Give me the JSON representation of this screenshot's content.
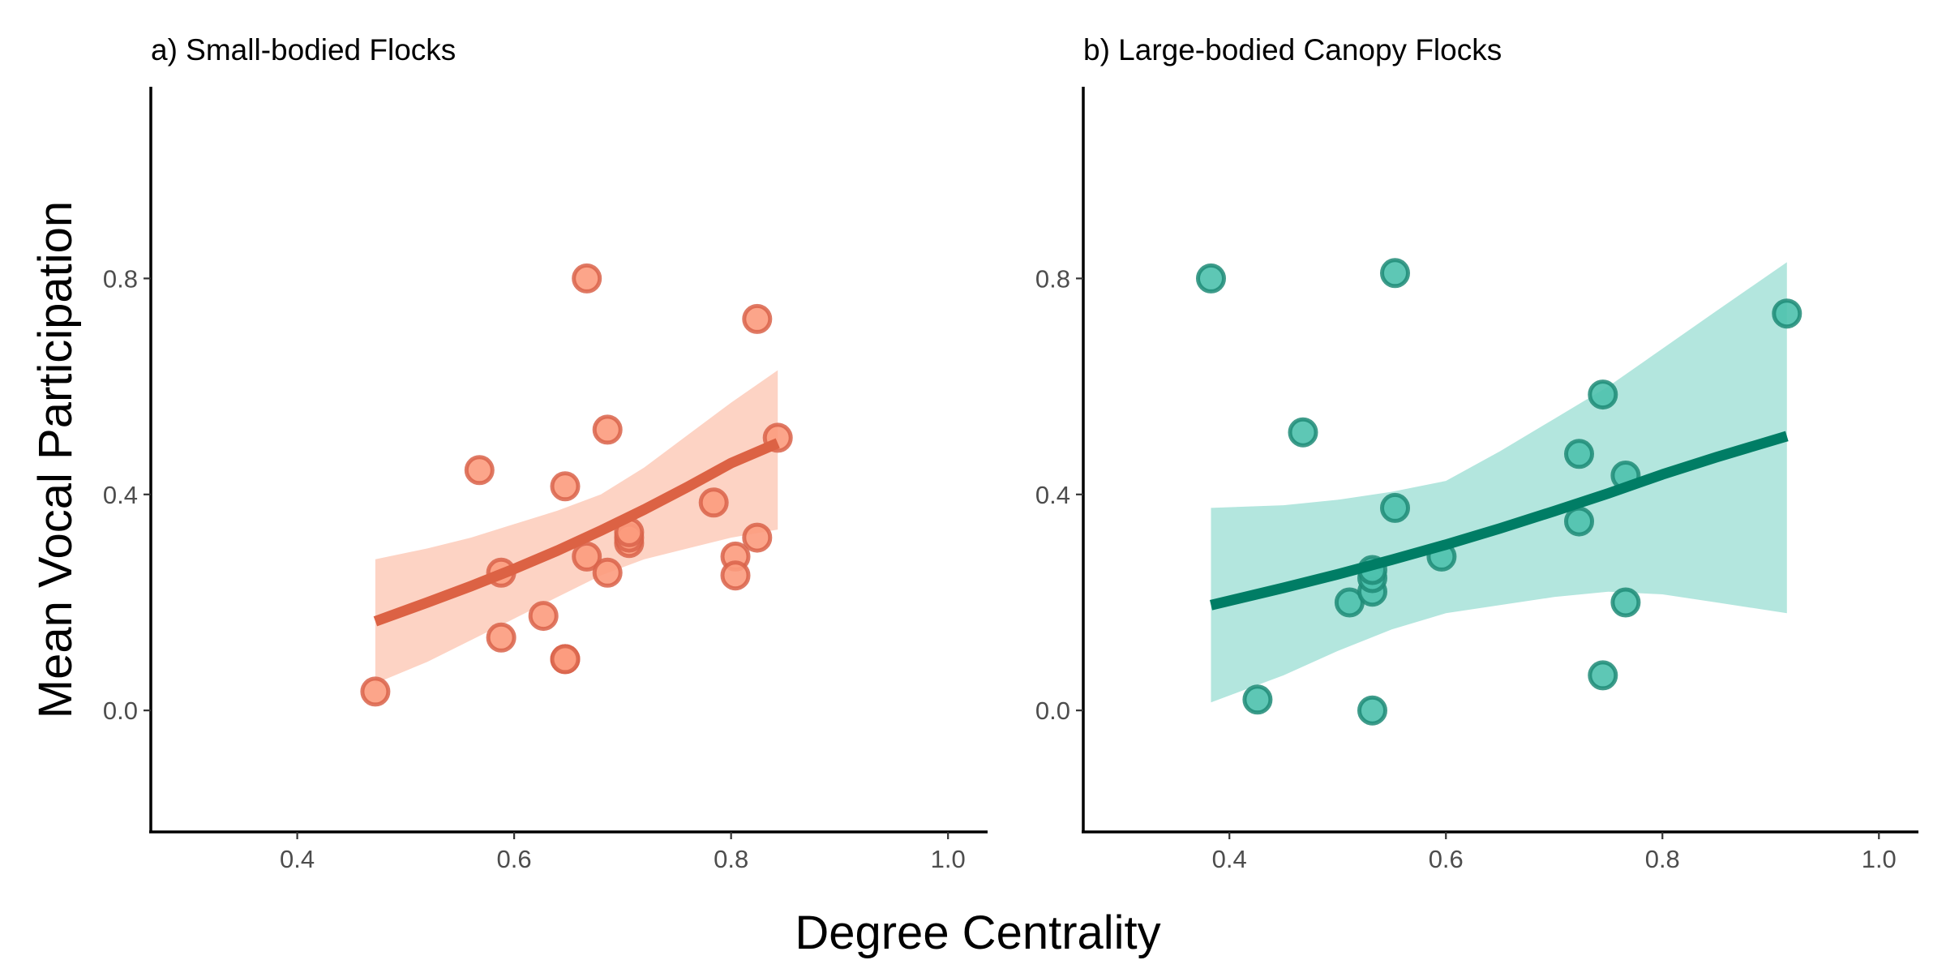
{
  "chart_data": [
    {
      "type": "scatter",
      "title": "a) Small-bodied Flocks",
      "xlabel": "Degree Centrality",
      "ylabel": "Mean Vocal Participation",
      "xlim": [
        0.265,
        1.035
      ],
      "ylim": [
        -0.225,
        1.155
      ],
      "xticks": [
        0.4,
        0.6,
        0.8,
        1.0
      ],
      "xtick_labels": [
        "0.4",
        "0.6",
        "0.8",
        "1.0"
      ],
      "yticks": [
        0.0,
        0.4,
        0.8
      ],
      "ytick_labels": [
        "0.0",
        "0.4",
        "0.8"
      ],
      "colors": {
        "fill": "#fc9b7d",
        "stroke": "#d9634a",
        "line": "#dc6244",
        "band": "#fdd3c4"
      },
      "points": {
        "x": [
          0.472,
          0.568,
          0.588,
          0.588,
          0.627,
          0.647,
          0.647,
          0.647,
          0.667,
          0.667,
          0.686,
          0.686,
          0.706,
          0.706,
          0.706,
          0.784,
          0.804,
          0.804,
          0.824,
          0.824,
          0.843
        ],
        "y": [
          0.035,
          0.445,
          0.255,
          0.135,
          0.175,
          0.415,
          0.095,
          0.095,
          0.8,
          0.285,
          0.52,
          0.255,
          0.31,
          0.32,
          0.33,
          0.385,
          0.285,
          0.25,
          0.32,
          0.725,
          0.505
        ]
      },
      "fit": {
        "x": [
          0.472,
          0.52,
          0.56,
          0.6,
          0.64,
          0.68,
          0.72,
          0.76,
          0.8,
          0.843
        ],
        "y": [
          0.165,
          0.2,
          0.23,
          0.262,
          0.296,
          0.333,
          0.372,
          0.414,
          0.458,
          0.495
        ],
        "lower": [
          0.05,
          0.09,
          0.13,
          0.17,
          0.21,
          0.25,
          0.28,
          0.3,
          0.32,
          0.335
        ],
        "upper": [
          0.28,
          0.3,
          0.32,
          0.345,
          0.37,
          0.4,
          0.45,
          0.51,
          0.57,
          0.63
        ]
      }
    },
    {
      "type": "scatter",
      "title": "b) Large-bodied Canopy Flocks",
      "xlabel": "Degree Centrality",
      "ylabel": "Mean Vocal Participation",
      "xlim": [
        0.265,
        1.035
      ],
      "ylim": [
        -0.225,
        1.155
      ],
      "xticks": [
        0.4,
        0.6,
        0.8,
        1.0
      ],
      "xtick_labels": [
        "0.4",
        "0.6",
        "0.8",
        "1.0"
      ],
      "yticks": [
        0.0,
        0.4,
        0.8
      ],
      "ytick_labels": [
        "0.0",
        "0.4",
        "0.8"
      ],
      "colors": {
        "fill": "#4cc1ad",
        "stroke": "#1e8b77",
        "line": "#007d65",
        "band": "#b3e6de"
      },
      "points": {
        "x": [
          0.383,
          0.426,
          0.468,
          0.511,
          0.532,
          0.532,
          0.532,
          0.532,
          0.553,
          0.553,
          0.596,
          0.723,
          0.723,
          0.745,
          0.745,
          0.766,
          0.766,
          0.915
        ],
        "y": [
          0.8,
          0.02,
          0.515,
          0.2,
          0.0,
          0.22,
          0.245,
          0.26,
          0.81,
          0.375,
          0.285,
          0.475,
          0.35,
          0.585,
          0.065,
          0.435,
          0.2,
          0.735
        ]
      },
      "fit": {
        "x": [
          0.383,
          0.45,
          0.5,
          0.55,
          0.6,
          0.65,
          0.7,
          0.75,
          0.8,
          0.85,
          0.915
        ],
        "y": [
          0.195,
          0.227,
          0.252,
          0.279,
          0.307,
          0.337,
          0.369,
          0.402,
          0.437,
          0.469,
          0.508
        ],
        "lower": [
          0.015,
          0.065,
          0.11,
          0.15,
          0.18,
          0.195,
          0.21,
          0.22,
          0.215,
          0.2,
          0.18
        ],
        "upper": [
          0.375,
          0.38,
          0.39,
          0.405,
          0.425,
          0.48,
          0.54,
          0.6,
          0.67,
          0.74,
          0.83
        ]
      }
    }
  ]
}
